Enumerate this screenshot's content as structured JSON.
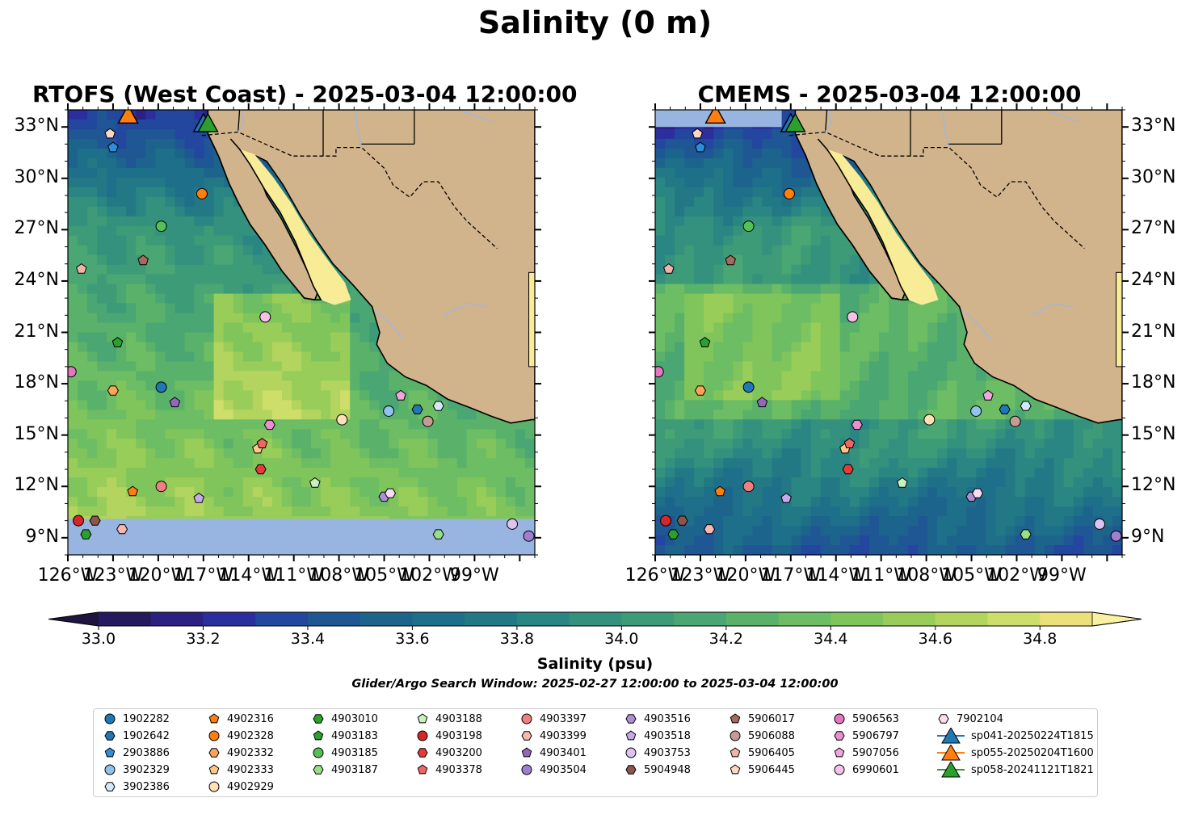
{
  "figure": {
    "title": "Salinity (0 m)",
    "window_text": "Glider/Argo Search Window: 2025-02-27 12:00:00 to 2025-03-04 12:00:00"
  },
  "panels": [
    {
      "title": "RTOFS (West Coast) - 2025-03-04 12:00:00",
      "masked_south_band": true
    },
    {
      "title": "CMEMS - 2025-03-04 12:00:00",
      "masked_north_band": true
    }
  ],
  "axes": {
    "lon_ticks": [
      "126°W",
      "123°W",
      "120°W",
      "117°W",
      "114°W",
      "111°W",
      "108°W",
      "105°W",
      "102°W",
      "99°W"
    ],
    "lat_ticks": [
      "33°N",
      "30°N",
      "27°N",
      "24°N",
      "21°N",
      "18°N",
      "15°N",
      "12°N",
      "9°N"
    ]
  },
  "colorbar": {
    "label": "Salinity (psu)",
    "ticks": [
      "33.0",
      "33.2",
      "33.4",
      "33.6",
      "33.8",
      "34.0",
      "34.2",
      "34.4",
      "34.6",
      "34.8"
    ],
    "colors": [
      "#261a5e",
      "#2c2180",
      "#2b2f9d",
      "#23469f",
      "#1f5694",
      "#1d648d",
      "#1e6f89",
      "#227985",
      "#2a8682",
      "#33917d",
      "#3d9b78",
      "#4aa672",
      "#5ab26a",
      "#6cbd63",
      "#80c55b",
      "#98cd5a",
      "#b3d55f",
      "#cede6a",
      "#ebe07a"
    ],
    "over_color": "#fbf0a1"
  },
  "map_colors": {
    "land": "#d2b48c",
    "gulf_fill": "#f9ec97",
    "masked": "#98b4e0",
    "rivers": "#9fb8d9"
  },
  "chart_data": {
    "type": "map",
    "title": "Salinity (0 m)",
    "lon_range": [
      -126,
      -95
    ],
    "lat_range": [
      8,
      34
    ],
    "color_range": [
      33.0,
      34.9
    ],
    "markers": [
      {
        "id": "1902282",
        "lon": -119.8,
        "lat": 17.8,
        "shape": "circle",
        "color": "#1f77b4"
      },
      {
        "id": "1902642",
        "lon": -102.8,
        "lat": 16.5,
        "shape": "hexagon",
        "color": "#1f77b4"
      },
      {
        "id": "2903886",
        "lon": -123.0,
        "lat": 31.8,
        "shape": "pentagon",
        "color": "#2b90d9"
      },
      {
        "id": "3902329",
        "lon": -104.7,
        "lat": 16.4,
        "shape": "circle",
        "color": "#8fc3ea"
      },
      {
        "id": "3902386",
        "lon": -101.4,
        "lat": 16.7,
        "shape": "hexagon",
        "color": "#d3e8f8"
      },
      {
        "id": "4902316",
        "lon": -121.7,
        "lat": 11.7,
        "shape": "pentagon",
        "color": "#ff7f0e"
      },
      {
        "id": "4902328",
        "lon": -117.1,
        "lat": 29.1,
        "shape": "circle",
        "color": "#ff7f0e"
      },
      {
        "id": "4902332",
        "lon": -123.0,
        "lat": 17.6,
        "shape": "hexagon",
        "color": "#ffa55a"
      },
      {
        "id": "4902333",
        "lon": -113.4,
        "lat": 14.2,
        "shape": "pentagon",
        "color": "#ffc88a"
      },
      {
        "id": "4902929",
        "lon": -107.8,
        "lat": 15.9,
        "shape": "circle",
        "color": "#ffe0b8"
      },
      {
        "id": "4903010",
        "lon": -124.8,
        "lat": 9.2,
        "shape": "hexagon",
        "color": "#2ca02c"
      },
      {
        "id": "4903183",
        "lon": -122.7,
        "lat": 20.4,
        "shape": "pentagon",
        "color": "#2ca02c"
      },
      {
        "id": "4903185",
        "lon": -119.8,
        "lat": 27.2,
        "shape": "circle",
        "color": "#55c055"
      },
      {
        "id": "4903187",
        "lon": -101.4,
        "lat": 9.2,
        "shape": "hexagon",
        "color": "#98df8a"
      },
      {
        "id": "4903188",
        "lon": -109.6,
        "lat": 12.2,
        "shape": "pentagon",
        "color": "#c9f2c0"
      },
      {
        "id": "4903198",
        "lon": -125.3,
        "lat": 10.0,
        "shape": "circle",
        "color": "#d62728"
      },
      {
        "id": "4903200",
        "lon": -113.2,
        "lat": 13.0,
        "shape": "hexagon",
        "color": "#e8393a"
      },
      {
        "id": "4903378",
        "lon": -113.1,
        "lat": 14.5,
        "shape": "pentagon",
        "color": "#f26464"
      },
      {
        "id": "4903397",
        "lon": -119.8,
        "lat": 12.0,
        "shape": "circle",
        "color": "#f08080"
      },
      {
        "id": "4903399",
        "lon": -122.4,
        "lat": 9.5,
        "shape": "hexagon",
        "color": "#f7b8b0"
      },
      {
        "id": "4903401",
        "lon": -118.9,
        "lat": 16.9,
        "shape": "pentagon",
        "color": "#9467bd"
      },
      {
        "id": "4903504",
        "lon": -95.4,
        "lat": 9.1,
        "shape": "circle",
        "color": "#9f7fd0"
      },
      {
        "id": "4903516",
        "lon": -105.0,
        "lat": 11.4,
        "shape": "hexagon",
        "color": "#ad8fd8"
      },
      {
        "id": "4903518",
        "lon": -117.3,
        "lat": 11.3,
        "shape": "pentagon",
        "color": "#c7a8ea"
      },
      {
        "id": "4903753",
        "lon": -96.5,
        "lat": 9.8,
        "shape": "circle",
        "color": "#dcc3f2"
      },
      {
        "id": "5904948",
        "lon": -124.2,
        "lat": 10.0,
        "shape": "hexagon",
        "color": "#8c564b"
      },
      {
        "id": "5906017",
        "lon": -121.0,
        "lat": 25.2,
        "shape": "pentagon",
        "color": "#a66b5e"
      },
      {
        "id": "5906088",
        "lon": -102.1,
        "lat": 15.8,
        "shape": "circle",
        "color": "#c49c94"
      },
      {
        "id": "5906405",
        "lon": -125.1,
        "lat": 24.7,
        "shape": "pentagon",
        "color": "#f0b5a8"
      },
      {
        "id": "5906445",
        "lon": -123.2,
        "lat": 32.6,
        "shape": "pentagon",
        "color": "#fbd7c6"
      },
      {
        "id": "5906563",
        "lon": -125.8,
        "lat": 18.7,
        "shape": "circle",
        "color": "#e377c2"
      },
      {
        "id": "5906797",
        "lon": -112.6,
        "lat": 15.6,
        "shape": "hexagon",
        "color": "#ea8fd0"
      },
      {
        "id": "5907056",
        "lon": -103.9,
        "lat": 17.3,
        "shape": "pentagon",
        "color": "#f2a6dc"
      },
      {
        "id": "6990601",
        "lon": -112.9,
        "lat": 21.9,
        "shape": "circle",
        "color": "#f6c1e6"
      },
      {
        "id": "7902104",
        "lon": -104.6,
        "lat": 11.6,
        "shape": "hexagon",
        "color": "#fadcf1"
      }
    ],
    "gliders": [
      {
        "id": "sp041-20250224T1815",
        "lon": -117.0,
        "lat": 33.2,
        "color": "#1f77b4"
      },
      {
        "id": "sp055-20250204T1600",
        "lon": -122.0,
        "lat": 33.7,
        "color": "#ff7f0e"
      },
      {
        "id": "sp058-20241121T1821",
        "lon": -116.7,
        "lat": 33.2,
        "color": "#2ca02c"
      }
    ]
  }
}
